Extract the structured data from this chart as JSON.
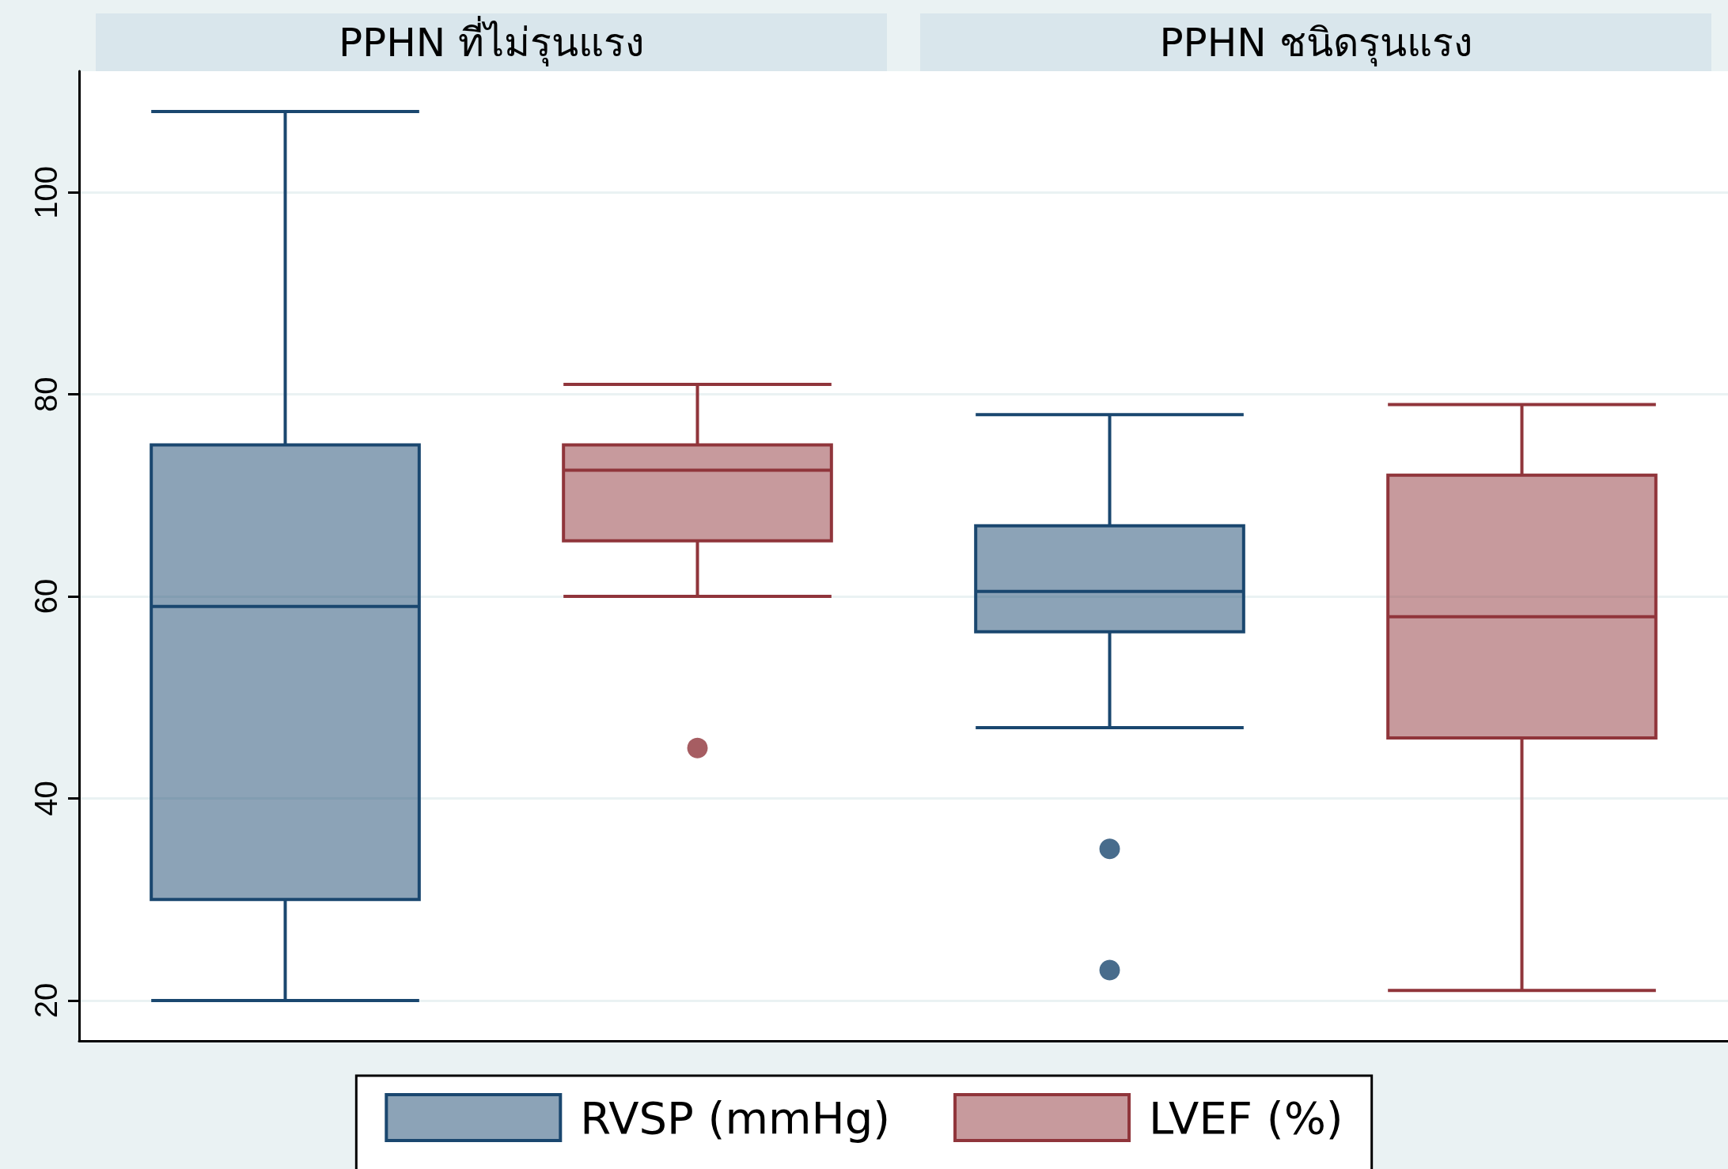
{
  "chart_data": {
    "type": "box",
    "categories": [
      "PPHN ที่ไม่รุนแรง",
      "PPHN ชนิดรุนแรง"
    ],
    "series": [
      {
        "name": "RVSP (mmHg)",
        "color": "#1a476f",
        "boxes": [
          {
            "low": 20,
            "q1": 30,
            "median": 59,
            "q3": 75,
            "high": 108
          },
          {
            "low": 47,
            "q1": 56.5,
            "median": 60.5,
            "q3": 67,
            "high": 78,
            "outliers": [
              35,
              23
            ]
          }
        ]
      },
      {
        "name": "LVEF (%)",
        "color": "#90353b",
        "boxes": [
          {
            "low": 60,
            "q1": 65.5,
            "median": 72.5,
            "q3": 75,
            "high": 81,
            "outliers": [
              45
            ]
          },
          {
            "low": 21,
            "q1": 46,
            "median": 58,
            "q3": 72,
            "high": 79
          }
        ]
      }
    ],
    "ylim": [
      16,
      112
    ],
    "yticks": [
      20,
      40,
      60,
      80,
      100
    ],
    "grid": "y",
    "legend": "bottom"
  }
}
